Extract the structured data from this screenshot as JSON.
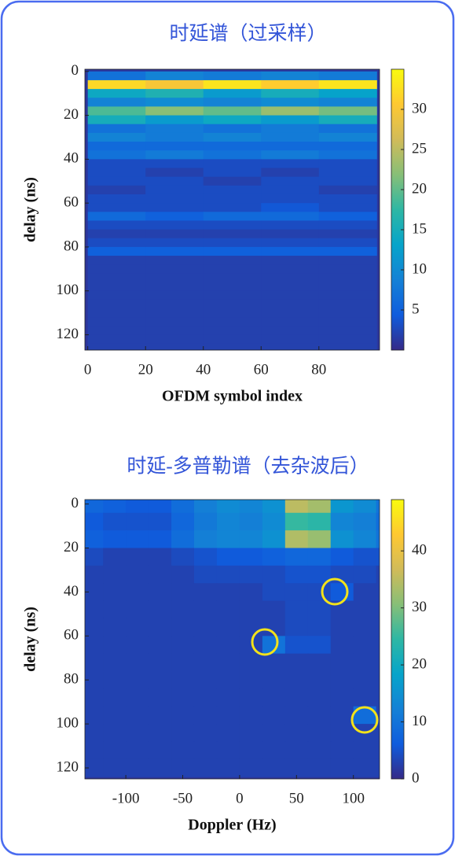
{
  "chart_data": [
    {
      "type": "heatmap",
      "title": "时延谱（过采样）",
      "x_label": "OFDM symbol index",
      "y_label": "delay (ns)",
      "colormap": "parula",
      "x": [
        10,
        30,
        50,
        70,
        90
      ],
      "y": [
        2,
        6,
        10,
        14,
        18,
        22,
        26,
        30,
        34,
        38,
        42,
        46,
        50,
        54,
        58,
        62,
        66,
        70,
        74,
        78,
        82,
        86,
        90,
        94,
        98,
        102,
        106,
        110,
        114,
        118,
        122,
        126
      ],
      "values": [
        [
          7,
          9,
          8,
          9,
          8
        ],
        [
          32,
          30,
          33,
          31,
          33
        ],
        [
          14,
          16,
          12,
          15,
          13
        ],
        [
          9,
          10,
          9,
          10,
          9
        ],
        [
          19,
          22,
          20,
          23,
          21
        ],
        [
          15,
          12,
          14,
          12,
          15
        ],
        [
          7,
          8,
          7,
          8,
          7
        ],
        [
          9,
          8,
          9,
          8,
          9
        ],
        [
          6,
          6,
          6,
          6,
          6
        ],
        [
          7,
          8,
          7,
          8,
          7
        ],
        [
          3,
          3,
          3,
          3,
          3
        ],
        [
          3,
          2,
          3,
          2,
          3
        ],
        [
          3,
          3,
          2,
          3,
          3
        ],
        [
          2,
          3,
          3,
          3,
          2
        ],
        [
          3,
          3,
          3,
          3,
          3
        ],
        [
          3,
          3,
          3,
          4,
          3
        ],
        [
          6,
          5,
          6,
          6,
          5
        ],
        [
          3,
          3,
          3,
          3,
          3
        ],
        [
          2,
          2,
          2,
          2,
          2
        ],
        [
          3,
          3,
          3,
          3,
          3
        ],
        [
          5,
          5,
          5,
          5,
          5
        ],
        [
          2,
          2,
          2,
          2,
          2
        ],
        [
          2,
          2,
          2,
          2,
          2
        ],
        [
          2,
          2,
          2,
          2,
          2
        ],
        [
          2,
          2,
          2,
          2,
          2
        ],
        [
          2,
          2,
          2,
          2,
          2
        ],
        [
          2,
          2,
          2,
          2,
          2
        ],
        [
          2,
          2,
          2,
          2,
          2
        ],
        [
          2,
          2,
          2,
          2,
          2
        ],
        [
          2,
          2,
          2,
          2,
          2
        ],
        [
          2,
          2,
          2,
          2,
          2
        ],
        [
          2,
          2,
          2,
          2,
          2
        ]
      ],
      "xlim": [
        -1,
        101
      ],
      "ylim": [
        -1,
        127
      ],
      "xticks": [
        0,
        20,
        40,
        60,
        80
      ],
      "yticks": [
        0,
        20,
        40,
        60,
        80,
        100,
        120
      ],
      "clim": [
        0,
        35
      ],
      "cticks": [
        5,
        10,
        15,
        20,
        25,
        30
      ]
    },
    {
      "type": "heatmap",
      "title": "时延-多普勒谱（去杂波后）",
      "x_label": "Doppler (Hz)",
      "y_label": "delay (ns)",
      "colormap": "parula",
      "x": [
        -130,
        -110,
        -90,
        -70,
        -50,
        -30,
        -10,
        10,
        30,
        50,
        70,
        90,
        110,
        130
      ],
      "y": [
        0,
        8,
        16,
        24,
        32,
        40,
        48,
        56,
        64,
        72,
        80,
        88,
        96,
        104,
        112,
        120
      ],
      "values": [
        [
          8,
          7,
          6,
          6,
          9,
          12,
          14,
          13,
          15,
          35,
          33,
          16,
          14,
          10
        ],
        [
          6,
          5,
          5,
          5,
          8,
          11,
          13,
          12,
          14,
          25,
          24,
          13,
          12,
          9
        ],
        [
          7,
          6,
          6,
          6,
          9,
          12,
          13,
          13,
          15,
          34,
          32,
          15,
          13,
          10
        ],
        [
          4,
          3,
          3,
          3,
          4,
          5,
          6,
          6,
          7,
          8,
          8,
          6,
          5,
          5
        ],
        [
          3,
          3,
          3,
          3,
          3,
          4,
          4,
          4,
          4,
          5,
          5,
          4,
          4,
          3
        ],
        [
          3,
          3,
          3,
          3,
          3,
          3,
          3,
          3,
          4,
          4,
          4,
          6,
          3,
          3
        ],
        [
          3,
          3,
          3,
          3,
          3,
          3,
          3,
          3,
          3,
          4,
          4,
          3,
          3,
          3
        ],
        [
          3,
          3,
          3,
          3,
          3,
          3,
          3,
          3,
          3,
          4,
          4,
          3,
          3,
          3
        ],
        [
          3,
          3,
          3,
          3,
          3,
          3,
          3,
          3,
          10,
          5,
          5,
          3,
          3,
          3
        ],
        [
          3,
          3,
          3,
          3,
          3,
          3,
          3,
          3,
          3,
          3,
          3,
          3,
          3,
          3
        ],
        [
          3,
          3,
          3,
          3,
          3,
          3,
          3,
          3,
          3,
          3,
          3,
          3,
          3,
          3
        ],
        [
          3,
          3,
          3,
          3,
          3,
          3,
          3,
          3,
          3,
          3,
          3,
          3,
          3,
          3
        ],
        [
          3,
          3,
          3,
          3,
          3,
          3,
          3,
          3,
          3,
          3,
          3,
          3,
          9,
          3
        ],
        [
          3,
          3,
          3,
          3,
          3,
          3,
          3,
          3,
          3,
          3,
          3,
          3,
          3,
          3
        ],
        [
          3,
          3,
          3,
          3,
          3,
          3,
          3,
          3,
          3,
          3,
          3,
          3,
          3,
          3
        ],
        [
          3,
          3,
          3,
          3,
          3,
          3,
          3,
          3,
          3,
          3,
          3,
          3,
          3,
          3
        ]
      ],
      "xlim": [
        -136,
        123
      ],
      "ylim": [
        -2,
        125
      ],
      "xticks": [
        -100,
        -50,
        0,
        50,
        100
      ],
      "yticks": [
        0,
        20,
        40,
        60,
        80,
        100,
        120
      ],
      "clim": [
        0,
        49
      ],
      "cticks": [
        0,
        10,
        20,
        30,
        40
      ]
    }
  ]
}
